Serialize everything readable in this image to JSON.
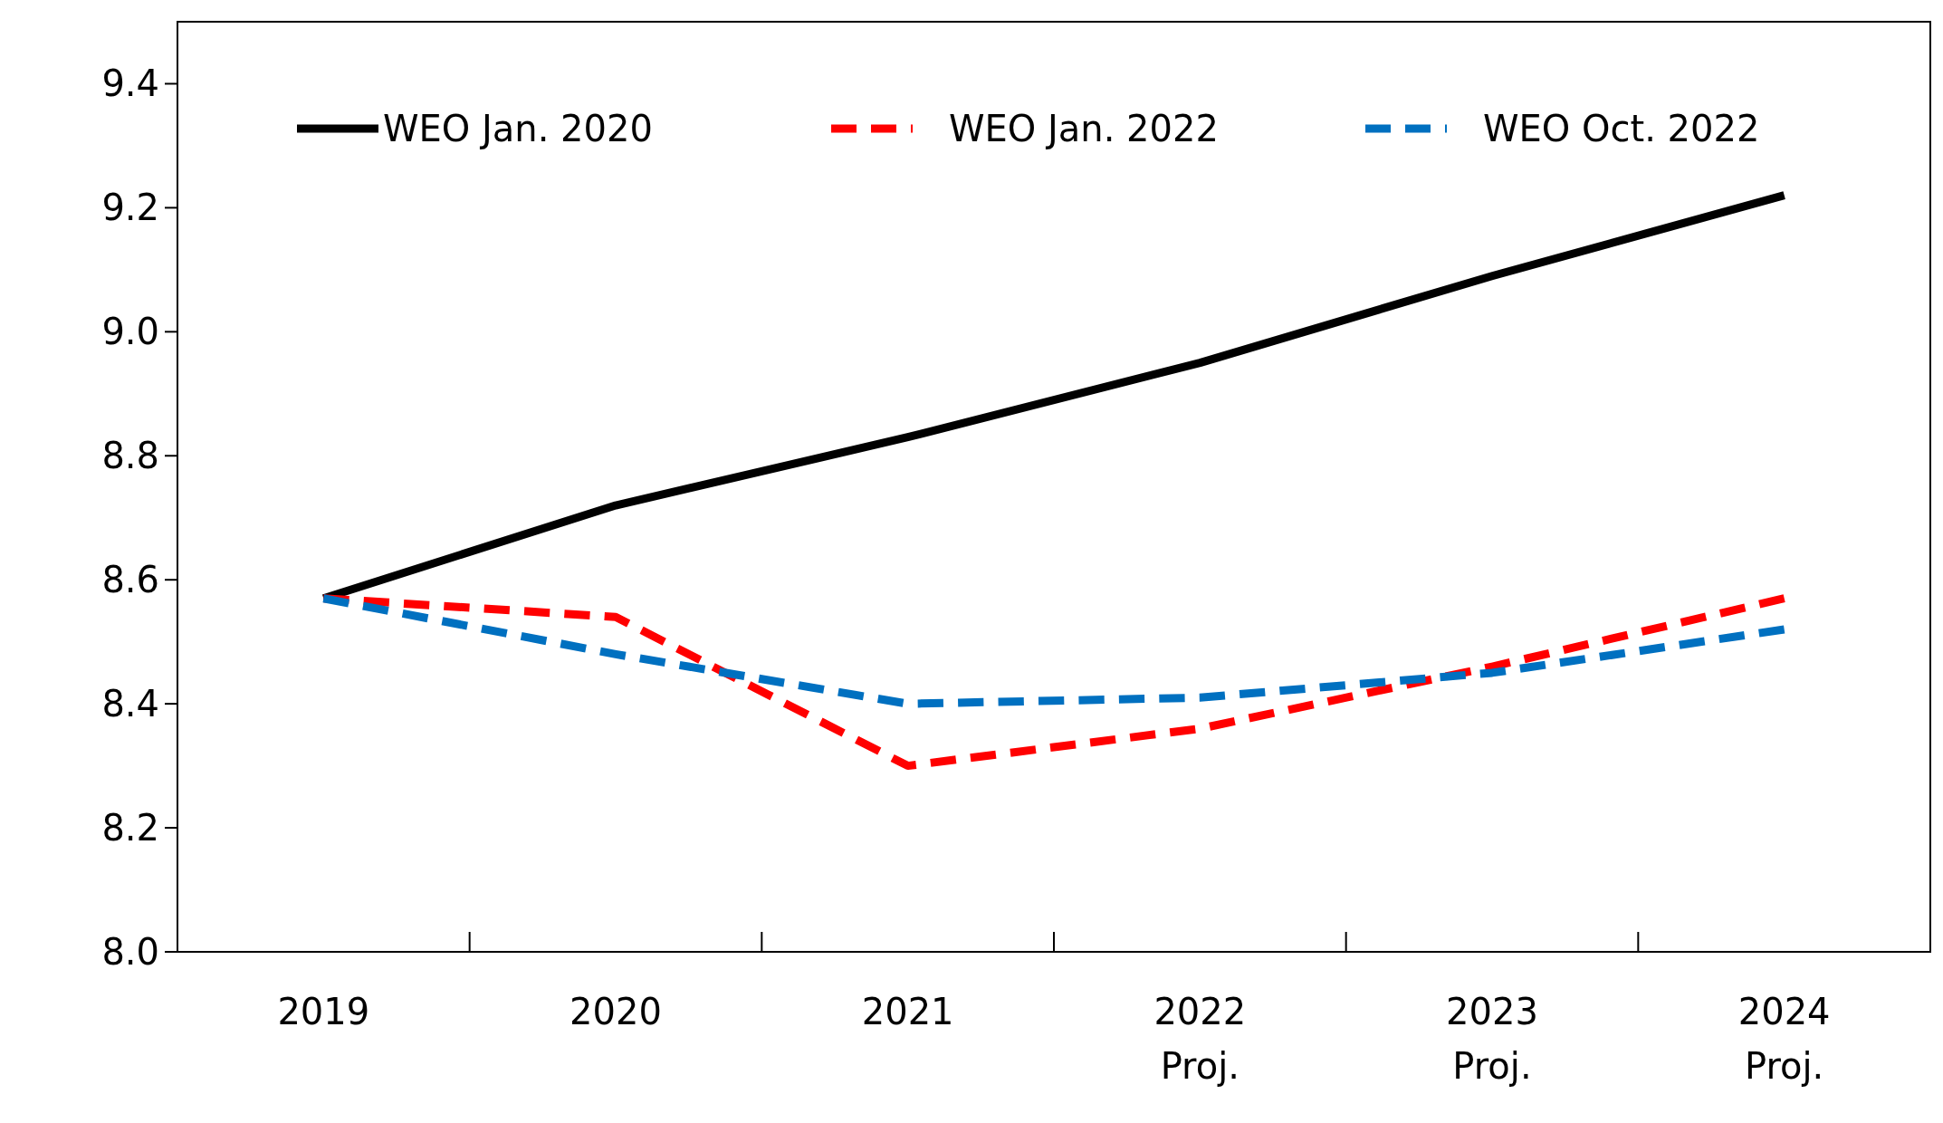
{
  "chart_data": {
    "type": "line",
    "categories": [
      "2019",
      "2020",
      "2021",
      "2022\nProj.",
      "2023\nProj.",
      "2024\nProj."
    ],
    "series": [
      {
        "name": "WEO Jan. 2020",
        "color": "#000000",
        "line_style": "solid",
        "values": [
          8.57,
          8.72,
          8.83,
          8.95,
          9.09,
          9.22
        ]
      },
      {
        "name": "WEO Jan. 2022",
        "color": "#ff0000",
        "line_style": "dashed",
        "values": [
          8.57,
          8.54,
          8.3,
          8.36,
          8.46,
          8.57
        ]
      },
      {
        "name": "WEO Oct. 2022",
        "color": "#0070c0",
        "line_style": "dashed",
        "values": [
          8.57,
          8.48,
          8.4,
          8.41,
          8.45,
          8.52
        ]
      }
    ],
    "ylim": [
      8,
      9.5
    ],
    "yticks": [
      {
        "value": 8,
        "label": "8.0"
      },
      {
        "value": 8.2,
        "label": "8.2"
      },
      {
        "value": 8.4,
        "label": "8.4"
      },
      {
        "value": 8.6,
        "label": "8.6"
      },
      {
        "value": 8.8,
        "label": "8.8"
      },
      {
        "value": 9,
        "label": "9.0"
      },
      {
        "value": 9.2,
        "label": "9.2"
      },
      {
        "value": 9.4,
        "label": "9.4"
      }
    ],
    "grid": false,
    "legend": "top",
    "marker": "none"
  }
}
